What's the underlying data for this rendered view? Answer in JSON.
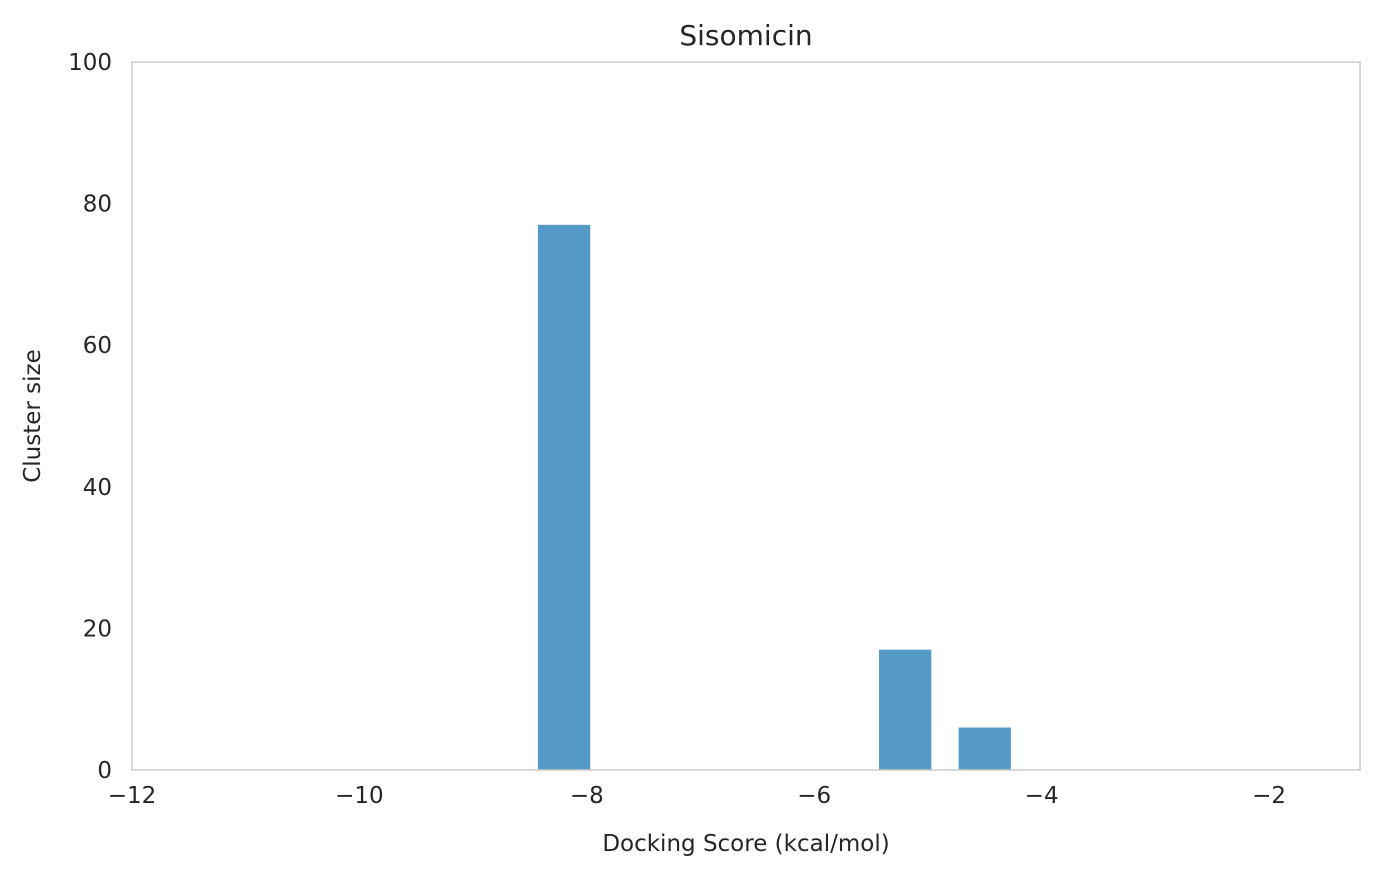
{
  "chart_data": {
    "type": "bar",
    "title": "Sisomicin",
    "xlabel": "Docking Score (kcal/mol)",
    "ylabel": "Cluster size",
    "xlim": [
      -12,
      -1.2
    ],
    "ylim": [
      0,
      100
    ],
    "x_ticks": [
      -12,
      -10,
      -8,
      -6,
      -4,
      -2
    ],
    "x_tick_labels": [
      "−12",
      "−10",
      "−8",
      "−6",
      "−4",
      "−2"
    ],
    "y_ticks": [
      0,
      20,
      40,
      60,
      80,
      100
    ],
    "y_tick_labels": [
      "0",
      "20",
      "40",
      "60",
      "80",
      "100"
    ],
    "bar_width": 0.46,
    "grid": false,
    "colors": {
      "bar": "#5599c7",
      "spine": "#cccccc",
      "text": "#262626"
    },
    "bars": [
      {
        "x": -8.2,
        "value": 77
      },
      {
        "x": -5.2,
        "value": 17
      },
      {
        "x": -4.5,
        "value": 6
      }
    ]
  }
}
